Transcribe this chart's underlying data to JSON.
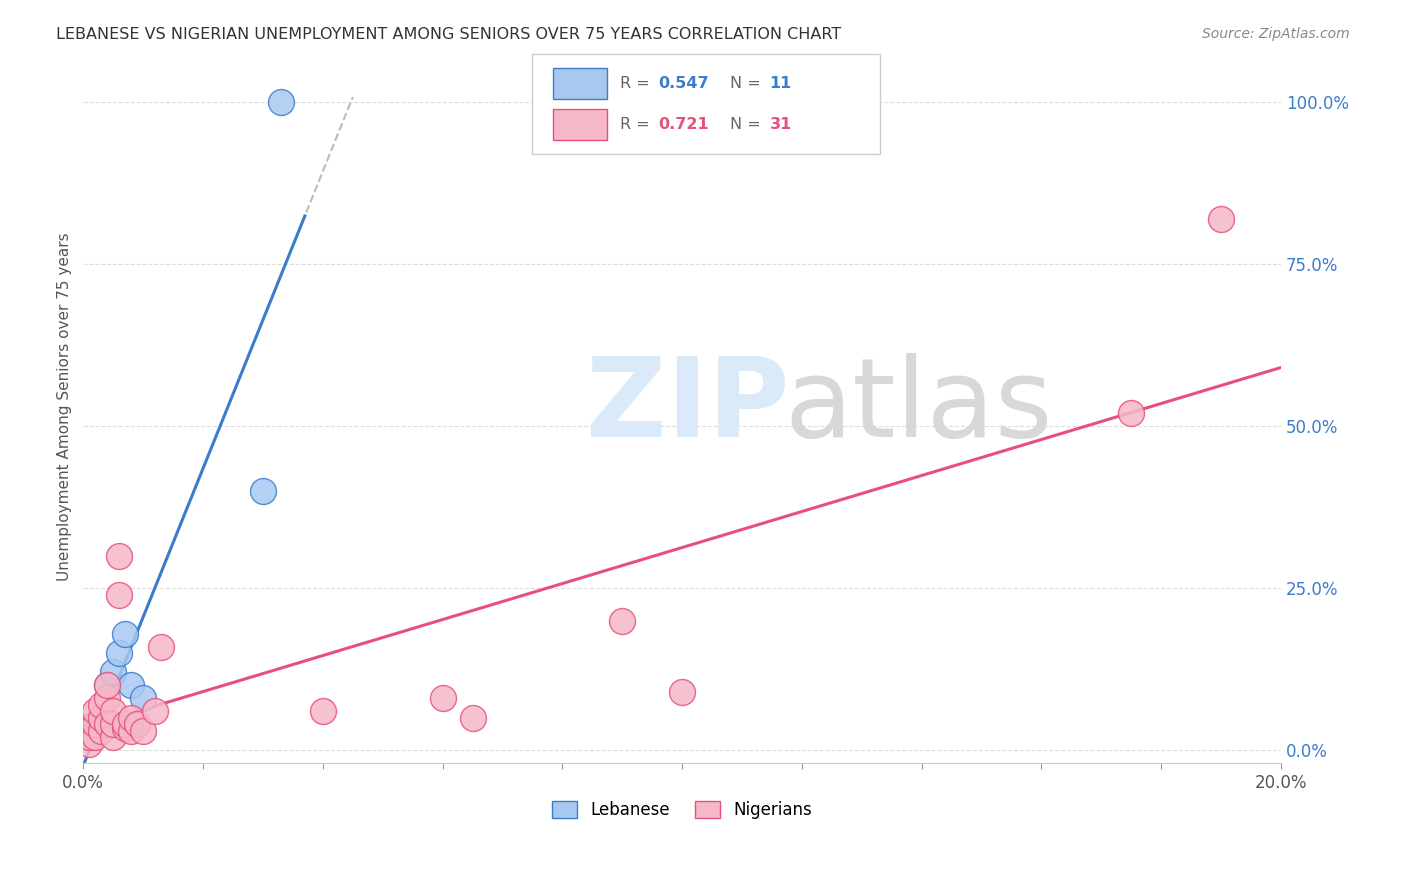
{
  "title": "LEBANESE VS NIGERIAN UNEMPLOYMENT AMONG SENIORS OVER 75 YEARS CORRELATION CHART",
  "source": "Source: ZipAtlas.com",
  "ylabel": "Unemployment Among Seniors over 75 years",
  "xlim": [
    0.0,
    0.2
  ],
  "ylim": [
    -0.02,
    1.08
  ],
  "yticks_right": [
    0.0,
    0.25,
    0.5,
    0.75,
    1.0
  ],
  "background_color": "#ffffff",
  "grid_color": "#dddddd",
  "lebanese_color": "#a8c8f0",
  "nigerian_color": "#f5b8c8",
  "lebanese_line_color": "#3a7dcc",
  "nigerian_line_color": "#e8507a",
  "lebanese_R": 0.547,
  "lebanese_N": 11,
  "nigerian_R": 0.721,
  "nigerian_N": 31,
  "lebanese_scatter_x": [
    0.001,
    0.002,
    0.003,
    0.004,
    0.005,
    0.006,
    0.007,
    0.008,
    0.01,
    0.03,
    0.033
  ],
  "lebanese_scatter_y": [
    0.02,
    0.04,
    0.05,
    0.1,
    0.12,
    0.15,
    0.18,
    0.1,
    0.08,
    0.4,
    1.0
  ],
  "nigerian_scatter_x": [
    0.001,
    0.001,
    0.002,
    0.002,
    0.002,
    0.003,
    0.003,
    0.003,
    0.004,
    0.004,
    0.004,
    0.005,
    0.005,
    0.005,
    0.006,
    0.006,
    0.007,
    0.007,
    0.008,
    0.008,
    0.009,
    0.01,
    0.012,
    0.013,
    0.04,
    0.06,
    0.065,
    0.09,
    0.1,
    0.175,
    0.19
  ],
  "nigerian_scatter_y": [
    0.01,
    0.02,
    0.02,
    0.04,
    0.06,
    0.03,
    0.05,
    0.07,
    0.04,
    0.08,
    0.1,
    0.02,
    0.04,
    0.06,
    0.24,
    0.3,
    0.035,
    0.04,
    0.03,
    0.05,
    0.04,
    0.03,
    0.06,
    0.16,
    0.06,
    0.08,
    0.05,
    0.2,
    0.09,
    0.52,
    0.82
  ],
  "scatter_size": 350
}
